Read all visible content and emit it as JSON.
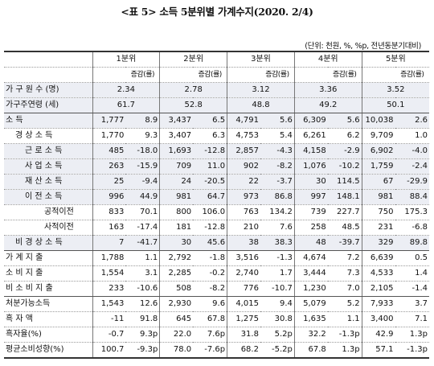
{
  "title": "<표 5>  소득 5분위별  가계수지(2020. 2/4)",
  "unit_note": "(단위: 천원, %, %p, 전년동분기대비)",
  "quintiles": [
    "1분위",
    "2분위",
    "3분위",
    "4분위",
    "5분위"
  ],
  "change_label": "증감(률)",
  "rows": [
    {
      "label": "가 구 원 수 (명)",
      "values": [
        "2.34",
        "2.78",
        "3.12",
        "3.36",
        "3.52"
      ]
    },
    {
      "label": "가구주연령 (세)",
      "values": [
        "61.7",
        "52.8",
        "48.8",
        "49.2",
        "50.1"
      ]
    },
    {
      "label": "소          득",
      "cells": [
        "1,777",
        "8.9",
        "3,437",
        "6.5",
        "4,791",
        "5.6",
        "6,309",
        "5.6",
        "10,038",
        "2.6"
      ]
    },
    {
      "label": "경 상 소 득",
      "cells": [
        "1,770",
        "9.3",
        "3,407",
        "6.3",
        "4,753",
        "5.4",
        "6,261",
        "6.2",
        "9,709",
        "1.0"
      ]
    },
    {
      "label": "근 로 소 득",
      "cells": [
        "485",
        "-18.0",
        "1,693",
        "-12.8",
        "2,857",
        "-4.3",
        "4,158",
        "-2.9",
        "6,902",
        "-4.0"
      ]
    },
    {
      "label": "사 업 소 득",
      "cells": [
        "263",
        "-15.9",
        "709",
        "11.0",
        "902",
        "-8.2",
        "1,076",
        "-10.2",
        "1,759",
        "-2.4"
      ]
    },
    {
      "label": "재 산 소 득",
      "cells": [
        "25",
        "-9.4",
        "24",
        "-20.5",
        "22",
        "-3.7",
        "30",
        "114.5",
        "67",
        "-29.9"
      ]
    },
    {
      "label": "이 전 소 득",
      "cells": [
        "996",
        "44.9",
        "981",
        "64.7",
        "973",
        "86.8",
        "997",
        "148.1",
        "981",
        "88.4"
      ]
    },
    {
      "label": "공적이전",
      "cells": [
        "833",
        "70.1",
        "800",
        "106.0",
        "763",
        "134.2",
        "739",
        "227.7",
        "750",
        "175.3"
      ]
    },
    {
      "label": "사적이전",
      "cells": [
        "163",
        "-17.4",
        "181",
        "-12.8",
        "210",
        "7.6",
        "258",
        "48.5",
        "231",
        "-6.8"
      ]
    },
    {
      "label": "비 경 상 소 득",
      "cells": [
        "7",
        "-41.7",
        "30",
        "45.6",
        "38",
        "38.3",
        "48",
        "-39.7",
        "329",
        "89.8"
      ]
    },
    {
      "label": "가 계 지 출",
      "cells": [
        "1,788",
        "1.1",
        "2,792",
        "-1.8",
        "3,516",
        "-1.3",
        "4,674",
        "7.2",
        "6,639",
        "0.5"
      ]
    },
    {
      "label": "소 비 지 출",
      "cells": [
        "1,554",
        "3.1",
        "2,285",
        "-0.2",
        "2,740",
        "1.7",
        "3,444",
        "7.3",
        "4,533",
        "1.4"
      ]
    },
    {
      "label": "비 소 비 지 출",
      "cells": [
        "233",
        "-10.6",
        "508",
        "-8.2",
        "776",
        "-10.7",
        "1,230",
        "7.0",
        "2,105",
        "-1.4"
      ]
    },
    {
      "label": "처분가능소득",
      "cells": [
        "1,543",
        "12.6",
        "2,930",
        "9.6",
        "4,015",
        "9.4",
        "5,079",
        "5.2",
        "7,933",
        "3.7"
      ]
    },
    {
      "label": "흑    자    액",
      "cells": [
        "-11",
        "91.8",
        "645",
        "67.8",
        "1,275",
        "30.8",
        "1,635",
        "1.1",
        "3,400",
        "7.1"
      ]
    },
    {
      "label": "흑자율(%)",
      "cells": [
        "-0.7",
        "9.3p",
        "22.0",
        "7.6p",
        "31.8",
        "5.2p",
        "32.2",
        "-1.3p",
        "42.9",
        "1.3p"
      ]
    },
    {
      "label": "평균소비성향(%)",
      "cells": [
        "100.7",
        "-9.3p",
        "78.0",
        "-7.6p",
        "68.2",
        "-5.2p",
        "67.8",
        "1.3p",
        "57.1",
        "-1.3p"
      ]
    }
  ]
}
